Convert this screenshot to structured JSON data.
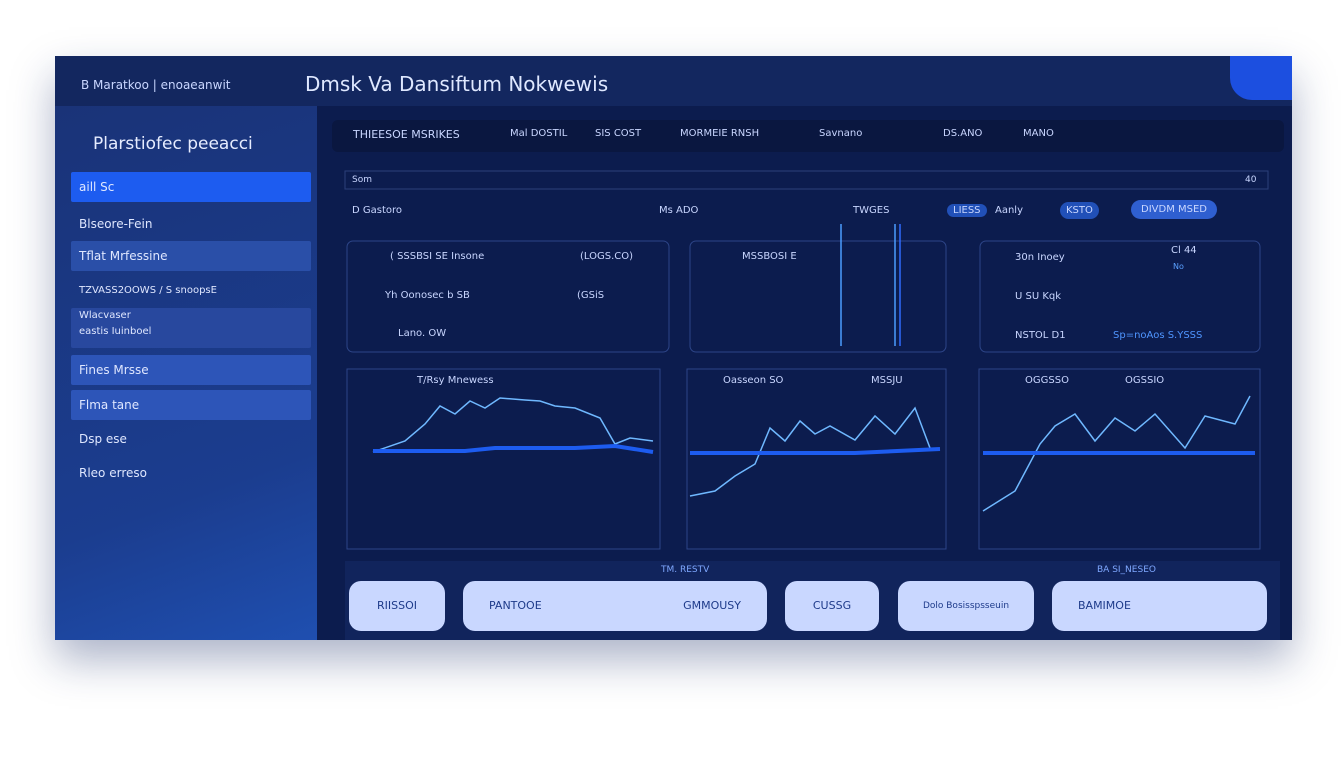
{
  "header": {
    "logo": "B Maratkoo | enoaeanwit",
    "title": "Dmsk Va Dansiftum Nokwewis"
  },
  "sidebar": {
    "title": "Plarstiofec peeacci",
    "items": [
      "aill Sc",
      "Blseore-Fein",
      "Tflat Mrfessine",
      "TZVASS2OOWS / S snoopsE",
      "Wlacvaser",
      "eastis Iuinboel",
      "Fines Mrsse",
      "Flma tane",
      "Dsp ese",
      "Rleo erreso"
    ]
  },
  "toolbar": [
    "THIEESOE MSRIKES",
    "Mal DOSTIL",
    "SIS COST",
    "MORMEIE RNSH",
    "Savnano",
    "DS.ANO",
    "MANO"
  ],
  "search": {
    "placeholder": "Som",
    "count": "40"
  },
  "filters": [
    "D Gastoro",
    "Ms ADO",
    "TWGES",
    "LIESS",
    "Aanly",
    "KSTO",
    "DIVDM MSED"
  ],
  "stats": {
    "panel1": [
      "( SSSBSI SE Insone",
      "(LOGS.CO)",
      "Yh Oonosec b SB",
      "(GSiS",
      "Lano. OW"
    ],
    "panel2": [
      "MSSBOSI E"
    ],
    "panel3": [
      "30n Inoey",
      "Cl 44",
      "No",
      "U SU Kqk",
      "NSTOL D1",
      "Sp=noAos S.YSSS"
    ]
  },
  "charts": [
    "T/Rsy Mnewess",
    "Oasseon SO",
    "MSSJU",
    "OGGSSO",
    "OGSSIO"
  ],
  "section_labels": [
    "TM. RESTV",
    "BA SI_NESEO"
  ],
  "buttons": [
    "RIISSOI",
    "PANTOOE",
    "GMMOUSY",
    "CUSSG",
    "Dolo Bosisspsseuin",
    "BAMIMOE"
  ]
}
